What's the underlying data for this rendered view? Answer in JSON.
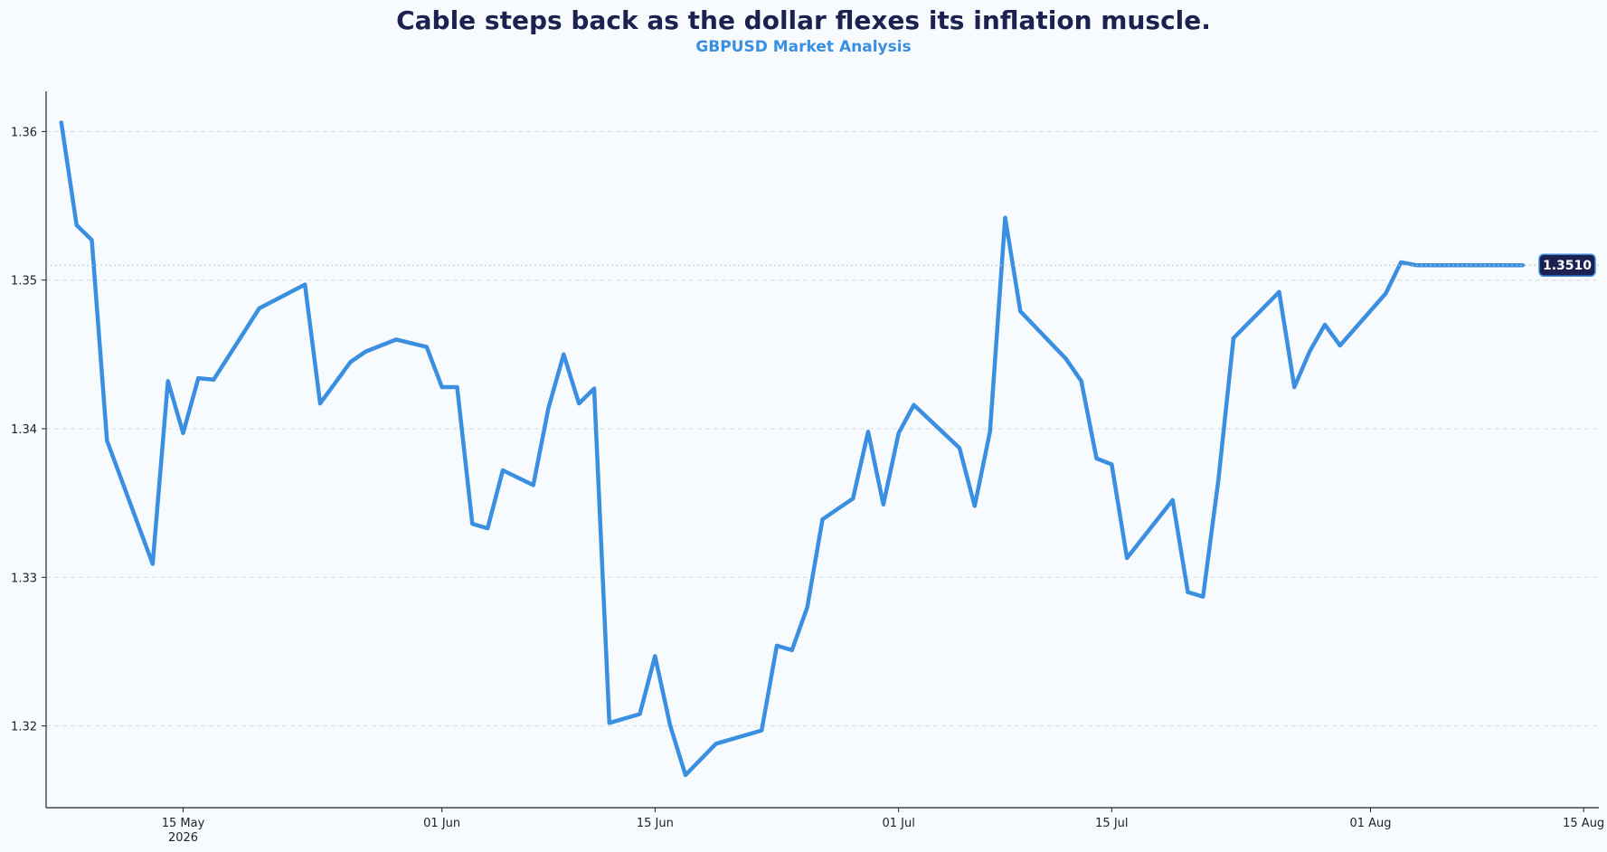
{
  "chart_data": {
    "type": "line",
    "title": "Cable steps back as the dollar flexes its inflation muscle.",
    "subtitle": "GBPUSD Market Analysis",
    "xlabel": "",
    "ylabel": "",
    "xlim": [
      "2026-05-06",
      "2026-08-16"
    ],
    "ylim": [
      1.3145,
      1.3627
    ],
    "grid": "horizontal dashed",
    "colors": {
      "line": "#3a8fe0",
      "badge": "#1c2250",
      "title": "#1c2250",
      "subtitle": "#3a8fe0"
    },
    "x_ticks": [
      {
        "date": "2026-05-15",
        "label": "15 May",
        "sublabel": "2026"
      },
      {
        "date": "2026-06-01",
        "label": "01 Jun",
        "sublabel": ""
      },
      {
        "date": "2026-06-15",
        "label": "15 Jun",
        "sublabel": ""
      },
      {
        "date": "2026-07-01",
        "label": "01 Jul",
        "sublabel": ""
      },
      {
        "date": "2026-07-15",
        "label": "15 Jul",
        "sublabel": ""
      },
      {
        "date": "2026-08-01",
        "label": "01 Aug",
        "sublabel": ""
      },
      {
        "date": "2026-08-15",
        "label": "15 Aug",
        "sublabel": ""
      }
    ],
    "y_ticks": [
      {
        "value": 1.32,
        "label": "1.32"
      },
      {
        "value": 1.33,
        "label": "1.33"
      },
      {
        "value": 1.34,
        "label": "1.34"
      },
      {
        "value": 1.35,
        "label": "1.35"
      },
      {
        "value": 1.36,
        "label": "1.36"
      }
    ],
    "last_value_label": "1.3510",
    "series": [
      {
        "x": [
          "2026-05-07",
          "2026-05-08",
          "2026-05-09",
          "2026-05-10",
          "2026-05-13",
          "2026-05-14",
          "2026-05-15",
          "2026-05-16",
          "2026-05-17",
          "2026-05-20",
          "2026-05-23",
          "2026-05-24",
          "2026-05-26",
          "2026-05-27",
          "2026-05-29",
          "2026-05-31",
          "2026-06-01",
          "2026-06-02",
          "2026-06-03",
          "2026-06-04",
          "2026-06-05",
          "2026-06-07",
          "2026-06-08",
          "2026-06-09",
          "2026-06-10",
          "2026-06-11",
          "2026-06-12",
          "2026-06-14",
          "2026-06-15",
          "2026-06-16",
          "2026-06-17",
          "2026-06-19",
          "2026-06-22",
          "2026-06-23",
          "2026-06-24",
          "2026-06-25",
          "2026-06-26",
          "2026-06-28",
          "2026-06-29",
          "2026-06-30",
          "2026-07-01",
          "2026-07-02",
          "2026-07-05",
          "2026-07-06",
          "2026-07-07",
          "2026-07-08",
          "2026-07-09",
          "2026-07-12",
          "2026-07-13",
          "2026-07-14",
          "2026-07-15",
          "2026-07-16",
          "2026-07-19",
          "2026-07-20",
          "2026-07-21",
          "2026-07-22",
          "2026-07-23",
          "2026-07-26",
          "2026-07-27",
          "2026-07-28",
          "2026-07-29",
          "2026-07-30",
          "2026-08-02",
          "2026-08-03",
          "2026-08-04",
          "2026-08-05",
          "2026-08-06",
          "2026-08-09",
          "2026-08-10",
          "2026-08-11"
        ],
        "y": [
          1.3606,
          1.3537,
          1.3527,
          1.3392,
          1.3309,
          1.3432,
          1.3397,
          1.3434,
          1.3433,
          1.3481,
          1.3497,
          1.3417,
          1.3445,
          1.3452,
          1.346,
          1.3455,
          1.3428,
          1.3428,
          1.3336,
          1.3333,
          1.3372,
          1.3362,
          1.3414,
          1.345,
          1.3417,
          1.3427,
          1.3202,
          1.3208,
          1.3247,
          1.32,
          1.3167,
          1.3188,
          1.3197,
          1.3254,
          1.3251,
          1.328,
          1.3339,
          1.3353,
          1.3398,
          1.3349,
          1.3397,
          1.3416,
          1.3387,
          1.3348,
          1.3398,
          1.3542,
          1.3479,
          1.3447,
          1.3432,
          1.338,
          1.3376,
          1.3313,
          1.3352,
          1.329,
          1.3287,
          1.3365,
          1.3461,
          1.3492,
          1.3428,
          1.3452,
          1.347,
          1.3456,
          1.3491,
          1.3512,
          1.351,
          1.351,
          1.351,
          1.351,
          1.351,
          1.351
        ]
      }
    ]
  }
}
